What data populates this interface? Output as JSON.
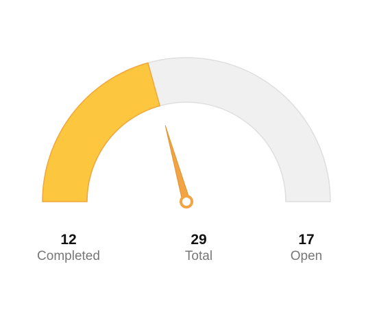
{
  "colors": {
    "completed": "#fdc63f",
    "completed_stroke": "#f0a63c",
    "remaining": "#f0f0f0",
    "remaining_stroke": "#dedede",
    "needle": "#f2a445",
    "needle_stroke": "#e0902d"
  },
  "chart_data": {
    "type": "gauge",
    "value": 12,
    "min": 0,
    "max": 29,
    "stats": [
      {
        "value": "12",
        "label": "Completed"
      },
      {
        "value": "29",
        "label": "Total"
      },
      {
        "value": "17",
        "label": "Open"
      }
    ]
  }
}
